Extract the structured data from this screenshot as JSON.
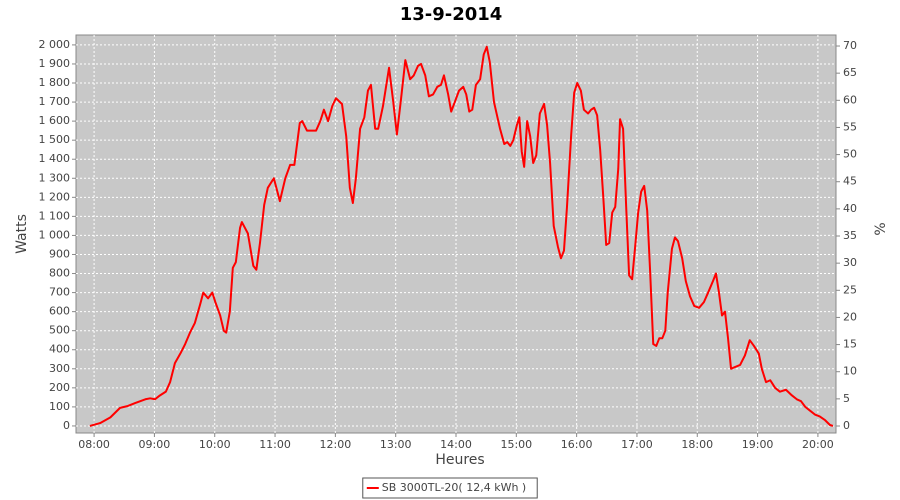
{
  "chart_data": {
    "type": "line",
    "title": "13-9-2014",
    "x_label": "Heures",
    "y_label": "Watts",
    "y2_label": "%",
    "grid": true,
    "legend": "bottom",
    "xlim": [
      7.7,
      20.3
    ],
    "xticks": [
      {
        "value": 8,
        "label": "08:00"
      },
      {
        "value": 9,
        "label": "09:00"
      },
      {
        "value": 10,
        "label": "10:00"
      },
      {
        "value": 11,
        "label": "11:00"
      },
      {
        "value": 12,
        "label": "12:00"
      },
      {
        "value": 13,
        "label": "13:00"
      },
      {
        "value": 14,
        "label": "14:00"
      },
      {
        "value": 15,
        "label": "15:00"
      },
      {
        "value": 16,
        "label": "16:00"
      },
      {
        "value": 17,
        "label": "17:00"
      },
      {
        "value": 18,
        "label": "18:00"
      },
      {
        "value": 19,
        "label": "19:00"
      },
      {
        "value": 20,
        "label": "20:00"
      }
    ],
    "ylim": [
      -37,
      2052
    ],
    "yticks": [
      0,
      100,
      200,
      300,
      400,
      500,
      600,
      700,
      800,
      900,
      {
        "value": 1000,
        "label": "1 000"
      },
      {
        "value": 1100,
        "label": "1 100"
      },
      {
        "value": 1200,
        "label": "1 200"
      },
      {
        "value": 1300,
        "label": "1 300"
      },
      {
        "value": 1400,
        "label": "1 400"
      },
      {
        "value": 1500,
        "label": "1 500"
      },
      {
        "value": 1600,
        "label": "1 600"
      },
      {
        "value": 1700,
        "label": "1 700"
      },
      {
        "value": 1800,
        "label": "1 800"
      },
      {
        "value": 1900,
        "label": "1 900"
      },
      {
        "value": 2000,
        "label": "2 000"
      }
    ],
    "y2lim": [
      -1.29,
      72.03
    ],
    "y2ticks": [
      0,
      5,
      10,
      15,
      20,
      25,
      30,
      35,
      40,
      45,
      50,
      55,
      60,
      65,
      70
    ],
    "x": [
      7.93,
      8.1,
      8.27,
      8.43,
      8.56,
      8.68,
      8.85,
      8.93,
      9.01,
      9.09,
      9.19,
      9.26,
      9.34,
      9.43,
      9.51,
      9.59,
      9.67,
      9.76,
      9.81,
      9.89,
      9.96,
      10.01,
      10.09,
      10.15,
      10.19,
      10.25,
      10.3,
      10.35,
      10.42,
      10.45,
      10.55,
      10.64,
      10.69,
      10.75,
      10.82,
      10.88,
      10.98,
      11.08,
      11.17,
      11.25,
      11.32,
      11.41,
      11.45,
      11.53,
      11.68,
      11.75,
      11.81,
      11.88,
      11.95,
      12.01,
      12.11,
      12.18,
      12.24,
      12.29,
      12.34,
      12.41,
      12.48,
      12.54,
      12.59,
      12.66,
      12.71,
      12.79,
      12.84,
      12.89,
      12.96,
      13.02,
      13.09,
      13.16,
      13.24,
      13.3,
      13.37,
      13.42,
      13.49,
      13.55,
      13.62,
      13.69,
      13.75,
      13.8,
      13.87,
      13.92,
      13.98,
      14.05,
      14.12,
      14.17,
      14.22,
      14.27,
      14.33,
      14.4,
      14.46,
      14.51,
      14.56,
      14.63,
      14.73,
      14.8,
      14.85,
      14.9,
      14.95,
      15.01,
      15.05,
      15.09,
      15.13,
      15.18,
      15.23,
      15.28,
      15.33,
      15.39,
      15.46,
      15.51,
      15.56,
      15.62,
      15.69,
      15.74,
      15.79,
      15.84,
      15.91,
      15.96,
      16.01,
      16.07,
      16.12,
      16.19,
      16.24,
      16.29,
      16.34,
      16.39,
      16.44,
      16.49,
      16.54,
      16.59,
      16.64,
      16.69,
      16.72,
      16.77,
      16.82,
      16.87,
      16.92,
      16.97,
      17.02,
      17.07,
      17.12,
      17.17,
      17.22,
      17.27,
      17.32,
      17.37,
      17.42,
      17.47,
      17.51,
      17.58,
      17.63,
      17.68,
      17.75,
      17.81,
      17.88,
      17.95,
      18.03,
      18.11,
      18.18,
      18.26,
      18.31,
      18.36,
      18.41,
      18.46,
      18.51,
      18.56,
      18.63,
      18.71,
      18.79,
      18.87,
      18.94,
      19.02,
      19.07,
      19.14,
      19.21,
      19.29,
      19.37,
      19.47,
      19.57,
      19.65,
      19.72,
      19.79,
      19.87,
      19.95,
      20.03,
      20.12,
      20.2,
      20.25
    ],
    "series": [
      {
        "name": "SB 3000TL-20( 12,4 kWh )",
        "color": "#ff0000",
        "values": [
          0,
          15,
          45,
          95,
          105,
          120,
          140,
          145,
          140,
          160,
          180,
          230,
          330,
          380,
          430,
          490,
          540,
          640,
          700,
          670,
          700,
          650,
          580,
          500,
          490,
          600,
          830,
          860,
          1040,
          1070,
          1010,
          840,
          820,
          960,
          1160,
          1250,
          1300,
          1180,
          1300,
          1370,
          1370,
          1590,
          1600,
          1550,
          1550,
          1600,
          1660,
          1600,
          1680,
          1720,
          1690,
          1520,
          1250,
          1170,
          1300,
          1560,
          1620,
          1760,
          1790,
          1560,
          1560,
          1680,
          1780,
          1880,
          1700,
          1530,
          1720,
          1920,
          1820,
          1840,
          1890,
          1900,
          1840,
          1730,
          1740,
          1780,
          1790,
          1840,
          1740,
          1650,
          1700,
          1760,
          1780,
          1740,
          1650,
          1660,
          1790,
          1820,
          1950,
          1990,
          1910,
          1700,
          1560,
          1480,
          1490,
          1470,
          1500,
          1580,
          1620,
          1440,
          1360,
          1600,
          1520,
          1380,
          1420,
          1640,
          1690,
          1580,
          1380,
          1050,
          940,
          880,
          920,
          1150,
          1530,
          1750,
          1800,
          1760,
          1660,
          1640,
          1660,
          1670,
          1630,
          1450,
          1210,
          950,
          960,
          1120,
          1150,
          1350,
          1610,
          1560,
          1160,
          790,
          770,
          940,
          1120,
          1230,
          1260,
          1130,
          800,
          430,
          420,
          460,
          460,
          500,
          700,
          930,
          990,
          970,
          880,
          760,
          680,
          630,
          620,
          650,
          700,
          760,
          800,
          700,
          580,
          600,
          460,
          300,
          310,
          320,
          370,
          450,
          420,
          380,
          300,
          230,
          240,
          200,
          180,
          190,
          160,
          140,
          130,
          100,
          80,
          60,
          50,
          30,
          5,
          0
        ]
      }
    ]
  }
}
